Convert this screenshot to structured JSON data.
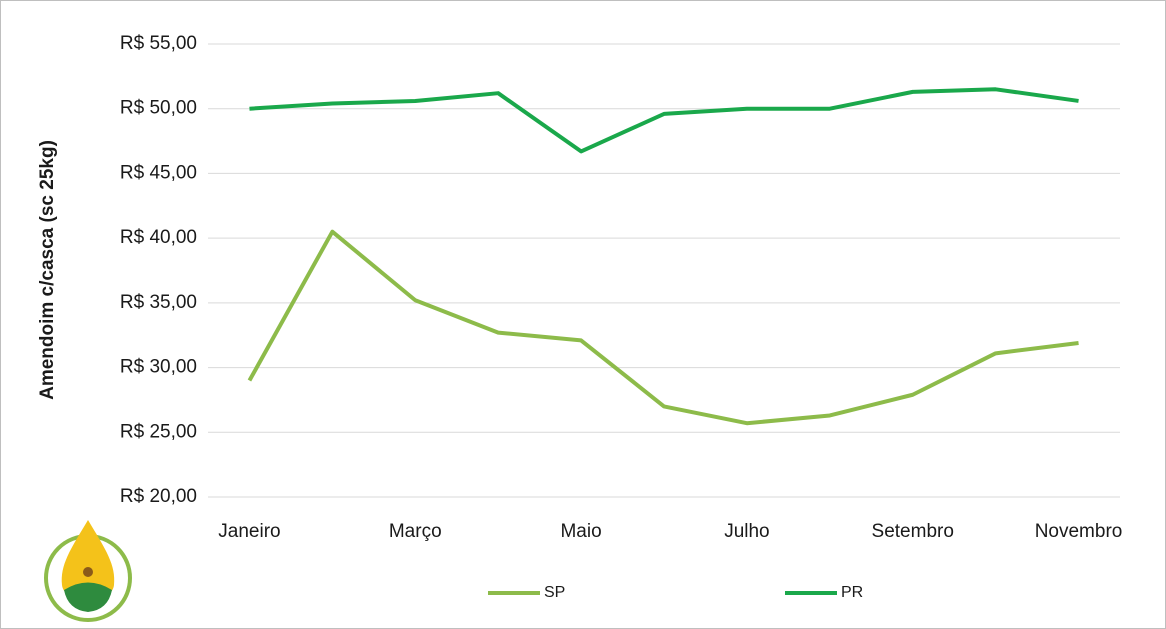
{
  "chart_data": {
    "type": "line",
    "y_label": "Amendoim c/casca (sc 25kg)",
    "categories": [
      "Janeiro",
      null,
      "Março",
      null,
      "Maio",
      null,
      "Julho",
      null,
      "Setembro",
      null,
      "Novembro"
    ],
    "series": [
      {
        "name": "SP",
        "color": "#8dbb4a",
        "values": [
          29.0,
          40.5,
          35.2,
          32.7,
          32.1,
          27.0,
          25.7,
          26.3,
          27.9,
          31.1,
          31.9
        ]
      },
      {
        "name": "PR",
        "color": "#1aa84b",
        "values": [
          50.0,
          50.4,
          50.6,
          51.2,
          46.7,
          49.6,
          50.0,
          50.0,
          51.3,
          51.5,
          50.6
        ]
      }
    ],
    "ylim": [
      20,
      55
    ],
    "yticks": [
      {
        "value": 20,
        "label": "R$ 20,00"
      },
      {
        "value": 25,
        "label": "R$ 25,00"
      },
      {
        "value": 30,
        "label": "R$ 30,00"
      },
      {
        "value": 35,
        "label": "R$ 35,00"
      },
      {
        "value": 40,
        "label": "R$ 40,00"
      },
      {
        "value": 45,
        "label": "R$ 45,00"
      },
      {
        "value": 50,
        "label": "R$ 50,00"
      },
      {
        "value": 55,
        "label": "R$ 55,00"
      }
    ],
    "grid": true,
    "legend": "bottom"
  }
}
